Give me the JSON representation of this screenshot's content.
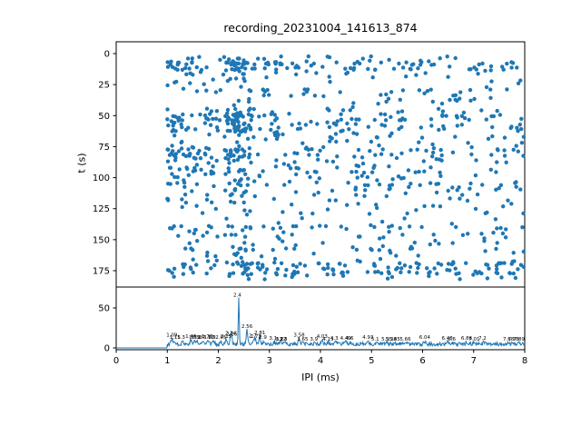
{
  "figure": {
    "title": "recording_20231004_141613_874",
    "background": "#ffffff",
    "axis_color": "#000000",
    "accent_color": "#1f77b4"
  },
  "chart_data": [
    {
      "type": "scatter",
      "title": "recording_20231004_141613_874",
      "xlabel": "IPI (ms)",
      "ylabel": "t (s)",
      "xlim": [
        0,
        8
      ],
      "ylim": [
        188,
        -10
      ],
      "y_inverted": true,
      "yticks": [
        0,
        25,
        50,
        75,
        100,
        125,
        150,
        175
      ],
      "grid": false,
      "legend": "none",
      "marker_color": "#1f77b4",
      "marker_radius": 2.2,
      "x_data_range": [
        1.0,
        7.98
      ],
      "seed": 1234,
      "bands": [
        {
          "t0": 2,
          "t1": 18,
          "n": 150,
          "xpow": 1.35,
          "colFrac": 0.1,
          "rows": [
            8,
            12
          ],
          "rowFrac": 0.35
        },
        {
          "t0": 18,
          "t1": 42,
          "n": 75,
          "xpow": 1.2,
          "colFrac": 0.08,
          "rows": [
            30
          ],
          "rowFrac": 0.2
        },
        {
          "t0": 43,
          "t1": 63,
          "n": 185,
          "xpow": 1.55,
          "colFrac": 0.22,
          "rows": [
            50,
            53,
            57,
            60
          ],
          "rowFrac": 0.55
        },
        {
          "t0": 63,
          "t1": 73,
          "n": 40,
          "xpow": 1.2,
          "colFrac": 0.1,
          "rows": [],
          "rowFrac": 0.0
        },
        {
          "t0": 73,
          "t1": 87,
          "n": 110,
          "xpow": 1.45,
          "colFrac": 0.15,
          "rows": [
            78,
            82
          ],
          "rowFrac": 0.4
        },
        {
          "t0": 87,
          "t1": 102,
          "n": 80,
          "xpow": 1.25,
          "colFrac": 0.1,
          "rows": [
            95
          ],
          "rowFrac": 0.25
        },
        {
          "t0": 102,
          "t1": 114,
          "n": 70,
          "xpow": 1.2,
          "colFrac": 0.1,
          "rows": [
            105,
            110
          ],
          "rowFrac": 0.3
        },
        {
          "t0": 114,
          "t1": 136,
          "n": 55,
          "xpow": 1.1,
          "colFrac": 0.05,
          "rows": [
            120,
            128
          ],
          "rowFrac": 0.2
        },
        {
          "t0": 136,
          "t1": 152,
          "n": 70,
          "xpow": 1.2,
          "colFrac": 0.08,
          "rows": [
            140,
            146
          ],
          "rowFrac": 0.35
        },
        {
          "t0": 152,
          "t1": 166,
          "n": 50,
          "xpow": 1.15,
          "colFrac": 0.05,
          "rows": [
            158
          ],
          "rowFrac": 0.2
        },
        {
          "t0": 166,
          "t1": 182,
          "n": 160,
          "xpow": 1.05,
          "colFrac": 0.08,
          "rows": [
            170,
            173,
            177
          ],
          "rowFrac": 0.5
        }
      ],
      "column_cluster": {
        "x_center": 2.4,
        "x_spread": 0.5
      }
    },
    {
      "type": "line",
      "xlabel": "IPI (ms)",
      "ylabel": "",
      "xlim": [
        0,
        8
      ],
      "ylim": [
        0,
        76
      ],
      "xticks": [
        0,
        1,
        2,
        3,
        4,
        5,
        6,
        7,
        8
      ],
      "yticks": [
        0,
        50
      ],
      "grid": false,
      "legend": "none",
      "line_color": "#1f77b4",
      "seed": 77,
      "baseline": {
        "flat_until_x": 1.0,
        "flat_value": 0,
        "noise_min": 2.5,
        "noise_max": 7.0,
        "step": 0.01
      },
      "peaks": [
        {
          "x": 1.09,
          "v": 12,
          "label": "1.09"
        },
        {
          "x": 1.15,
          "v": 9,
          "label": "1.15"
        },
        {
          "x": 1.3,
          "v": 9,
          "label": "1.3"
        },
        {
          "x": 1.46,
          "v": 10,
          "label": "1.46"
        },
        {
          "x": 1.53,
          "v": 9,
          "label": "1.53"
        },
        {
          "x": 1.58,
          "v": 9,
          "label": "1.58"
        },
        {
          "x": 1.7,
          "v": 9,
          "label": "1.7"
        },
        {
          "x": 1.78,
          "v": 10,
          "label": "1.78"
        },
        {
          "x": 1.82,
          "v": 9,
          "label": "1.82"
        },
        {
          "x": 1.9,
          "v": 9,
          "label": "1.9"
        },
        {
          "x": 2.05,
          "v": 9,
          "label": "2.05"
        },
        {
          "x": 2.15,
          "v": 10,
          "label": "2.15"
        },
        {
          "x": 2.24,
          "v": 14,
          "label": "2.24"
        },
        {
          "x": 2.26,
          "v": 13,
          "label": "2.26"
        },
        {
          "x": 2.4,
          "v": 62,
          "label": "2.4"
        },
        {
          "x": 2.56,
          "v": 23,
          "label": "2.56"
        },
        {
          "x": 2.7,
          "v": 11,
          "label": "2.7"
        },
        {
          "x": 2.73,
          "v": 10,
          "label": "2.73"
        },
        {
          "x": 2.81,
          "v": 15,
          "label": "2.81"
        },
        {
          "x": 2.9,
          "v": 9,
          "label": "2.9"
        },
        {
          "x": 3.1,
          "v": 8,
          "label": "3.1"
        },
        {
          "x": 3.22,
          "v": 7,
          "label": "3.22"
        },
        {
          "x": 3.23,
          "v": 7,
          "label": "3.23"
        },
        {
          "x": 3.3,
          "v": 7,
          "label": "3.3"
        },
        {
          "x": 3.58,
          "v": 12,
          "label": "3.58"
        },
        {
          "x": 3.65,
          "v": 7,
          "label": "3.65"
        },
        {
          "x": 3.9,
          "v": 7,
          "label": "3.9"
        },
        {
          "x": 4.03,
          "v": 10,
          "label": "4.03"
        },
        {
          "x": 4.15,
          "v": 7,
          "label": "4.15"
        },
        {
          "x": 4.3,
          "v": 8,
          "label": "4.3"
        },
        {
          "x": 4.49,
          "v": 8,
          "label": "4.49"
        },
        {
          "x": 4.6,
          "v": 8,
          "label": "4.6"
        },
        {
          "x": 4.93,
          "v": 9,
          "label": "4.93"
        },
        {
          "x": 5.1,
          "v": 7,
          "label": "5.1"
        },
        {
          "x": 5.3,
          "v": 7,
          "label": "5.3"
        },
        {
          "x": 5.38,
          "v": 7,
          "label": "5.38"
        },
        {
          "x": 5.45,
          "v": 7,
          "label": "5.45"
        },
        {
          "x": 5.66,
          "v": 7,
          "label": "5.66"
        },
        {
          "x": 6.04,
          "v": 9,
          "label": "6.04"
        },
        {
          "x": 6.48,
          "v": 8,
          "label": "6.48"
        },
        {
          "x": 6.6,
          "v": 7,
          "label": "6.6"
        },
        {
          "x": 6.86,
          "v": 8,
          "label": "6.86"
        },
        {
          "x": 7.01,
          "v": 7,
          "label": "7.01"
        },
        {
          "x": 7.2,
          "v": 8,
          "label": "7.2"
        },
        {
          "x": 7.68,
          "v": 7,
          "label": "7.68"
        },
        {
          "x": 7.78,
          "v": 7,
          "label": "7.78"
        },
        {
          "x": 7.89,
          "v": 7,
          "label": "7.89"
        }
      ]
    }
  ]
}
